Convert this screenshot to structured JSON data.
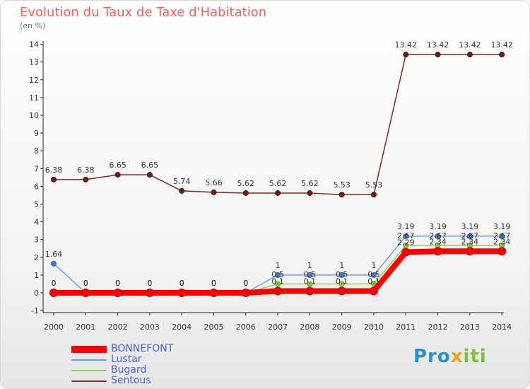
{
  "title": "Evolution du Taux de Taxe d'Habitation",
  "subtitle": "(en %)",
  "brand": {
    "part1": "Pro",
    "part2": "x",
    "part3": "iti"
  },
  "chart_data": {
    "type": "line",
    "title": "Evolution du Taux de Taxe d'Habitation",
    "subtitle": "(en %)",
    "x": [
      "2000",
      "2001",
      "2002",
      "2003",
      "2004",
      "2005",
      "2006",
      "2007",
      "2008",
      "2009",
      "2010",
      "2011",
      "2012",
      "2013",
      "2014"
    ],
    "y_ticks": [
      "-1",
      "0",
      "1",
      "2",
      "3",
      "4",
      "5",
      "6",
      "7",
      "8",
      "9",
      "10",
      "11",
      "12",
      "13",
      "14"
    ],
    "ylim": [
      -1,
      14
    ],
    "grid": false,
    "legend_position": "bottom-left",
    "series": [
      {
        "name": "Sentous",
        "color": "#7a2a2a",
        "values": [
          6.38,
          6.38,
          6.65,
          6.65,
          5.74,
          5.66,
          5.62,
          5.62,
          5.62,
          5.53,
          5.53,
          13.42,
          13.42,
          13.42,
          13.42
        ],
        "labels": [
          "6.38",
          "6.38",
          "6.65",
          "6.65",
          "5.74",
          "5.66",
          "5.62",
          "5.62",
          "5.62",
          "5.53",
          "5.53",
          "13.42",
          "13.42",
          "13.42",
          "13.42"
        ]
      },
      {
        "name": "Lustar",
        "color": "#6ea0d8",
        "values": [
          1.64,
          0,
          0,
          0,
          0,
          0,
          0,
          1,
          1,
          1,
          1,
          3.19,
          3.19,
          3.19,
          3.19
        ],
        "labels": [
          "1.64",
          "0",
          "0",
          "0",
          "0",
          "0",
          "0",
          "1",
          "1",
          "1",
          "1",
          "3.19",
          "3.19",
          "3.19",
          "3.19"
        ]
      },
      {
        "name": "Bugard",
        "color": "#8cd45a",
        "values": [
          0,
          0,
          0,
          0,
          0,
          0,
          0,
          0.5,
          0.5,
          0.5,
          0.5,
          2.67,
          2.67,
          2.67,
          2.67
        ],
        "labels": [
          "0",
          "0",
          "0",
          "0",
          "0",
          "0",
          "0",
          "0.5",
          "0.5",
          "0.5",
          "0.5",
          "2.67",
          "2.67",
          "2.67",
          "2.67"
        ]
      },
      {
        "name": "BONNEFONT",
        "color": "#ff0000",
        "values": [
          0,
          0,
          0,
          0,
          0,
          0,
          0,
          0.1,
          0.1,
          0.1,
          0.1,
          2.29,
          2.34,
          2.34,
          2.34
        ],
        "labels": [
          "0",
          "0",
          "0",
          "0",
          "0",
          "0",
          "0",
          "0.1",
          "0.1",
          "0.1",
          "0.1",
          "2.29",
          "2.34",
          "2.34",
          "2.34"
        ]
      }
    ]
  },
  "legend": [
    {
      "name": "BONNEFONT",
      "color": "#ff0000"
    },
    {
      "name": "Lustar",
      "color": "#6ea0d8"
    },
    {
      "name": "Bugard",
      "color": "#8cd45a"
    },
    {
      "name": "Sentous",
      "color": "#7a2a2a"
    }
  ]
}
